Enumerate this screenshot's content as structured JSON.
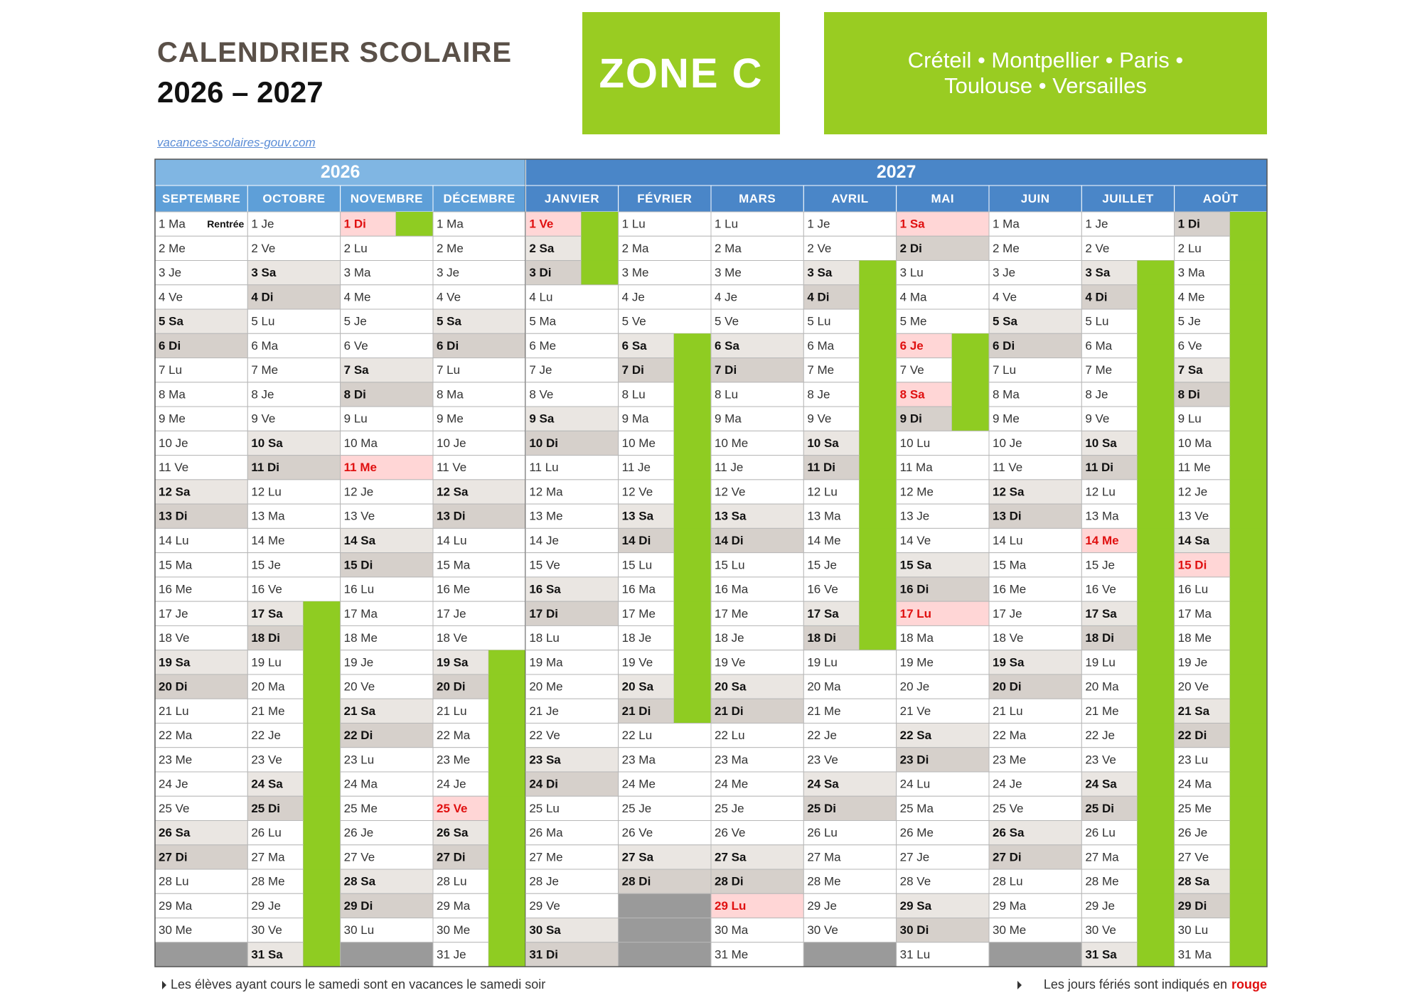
{
  "header": {
    "title": "CALENDRIER SCOLAIRE",
    "years": "2026 – 2027",
    "zone": "ZONE C",
    "cities": "Créteil • Montpellier • Paris • Toulouse • Versailles",
    "link": "vacances-scolaires-gouv.com"
  },
  "calendar": {
    "years": [
      {
        "label": "2026",
        "months": [
          {
            "name": "SEPTEMBRE",
            "days": [
              "1 Ma",
              "2 Me",
              "3 Je",
              "4 Ve",
              "5 Sa",
              "6 Di",
              "7 Lu",
              "8 Ma",
              "9 Me",
              "10 Je",
              "11 Ve",
              "12 Sa",
              "13 Di",
              "14 Lu",
              "15 Ma",
              "16 Me",
              "17 Je",
              "18 Ve",
              "19 Sa",
              "20 Di",
              "21 Lu",
              "22 Ma",
              "23 Me",
              "24 Je",
              "25 Ve",
              "26 Sa",
              "27 Di",
              "28 Lu",
              "29 Ma",
              "30 Me"
            ],
            "holidays": [],
            "vacation": [],
            "notes": [
              {
                "day": 1,
                "text": "Rentrée"
              }
            ]
          },
          {
            "name": "OCTOBRE",
            "days": [
              "1 Je",
              "2 Ve",
              "3 Sa",
              "4 Di",
              "5 Lu",
              "6 Ma",
              "7 Me",
              "8 Je",
              "9 Ve",
              "10 Sa",
              "11 Di",
              "12 Lu",
              "13 Ma",
              "14 Me",
              "15 Je",
              "16 Ve",
              "17 Sa",
              "18 Di",
              "19 Lu",
              "20 Ma",
              "21 Me",
              "22 Je",
              "23 Ve",
              "24 Sa",
              "25 Di",
              "26 Lu",
              "27 Ma",
              "28 Me",
              "29 Je",
              "30 Ve",
              "31 Sa"
            ],
            "holidays": [],
            "vacation": [
              [
                17,
                31
              ]
            ]
          },
          {
            "name": "NOVEMBRE",
            "days": [
              "1 Di",
              "2 Lu",
              "3 Ma",
              "4 Me",
              "5 Je",
              "6 Ve",
              "7 Sa",
              "8 Di",
              "9 Lu",
              "10 Ma",
              "11 Me",
              "12 Je",
              "13 Ve",
              "14 Sa",
              "15 Di",
              "16 Lu",
              "17 Ma",
              "18 Me",
              "19 Je",
              "20 Ve",
              "21 Sa",
              "22 Di",
              "23 Lu",
              "24 Ma",
              "25 Me",
              "26 Je",
              "27 Ve",
              "28 Sa",
              "29 Di",
              "30 Lu"
            ],
            "holidays": [
              1,
              11
            ],
            "vacation": [
              [
                1,
                1
              ]
            ]
          },
          {
            "name": "DÉCEMBRE",
            "days": [
              "1 Ma",
              "2 Me",
              "3 Je",
              "4 Ve",
              "5 Sa",
              "6 Di",
              "7 Lu",
              "8 Ma",
              "9 Me",
              "10 Je",
              "11 Ve",
              "12 Sa",
              "13 Di",
              "14 Lu",
              "15 Ma",
              "16 Me",
              "17 Je",
              "18 Ve",
              "19 Sa",
              "20 Di",
              "21 Lu",
              "22 Ma",
              "23 Me",
              "24 Je",
              "25 Ve",
              "26 Sa",
              "27 Di",
              "28 Lu",
              "29 Ma",
              "30 Me",
              "31 Je"
            ],
            "holidays": [
              25
            ],
            "vacation": [
              [
                19,
                31
              ]
            ]
          }
        ]
      },
      {
        "label": "2027",
        "months": [
          {
            "name": "JANVIER",
            "days": [
              "1 Ve",
              "2 Sa",
              "3 Di",
              "4 Lu",
              "5 Ma",
              "6 Me",
              "7 Je",
              "8 Ve",
              "9 Sa",
              "10 Di",
              "11 Lu",
              "12 Ma",
              "13 Me",
              "14 Je",
              "15 Ve",
              "16 Sa",
              "17 Di",
              "18 Lu",
              "19 Ma",
              "20 Me",
              "21 Je",
              "22 Ve",
              "23 Sa",
              "24 Di",
              "25 Lu",
              "26 Ma",
              "27 Me",
              "28 Je",
              "29 Ve",
              "30 Sa",
              "31 Di"
            ],
            "holidays": [
              1
            ],
            "vacation": [
              [
                1,
                3
              ]
            ]
          },
          {
            "name": "FÉVRIER",
            "days": [
              "1 Lu",
              "2 Ma",
              "3 Me",
              "4 Je",
              "5 Ve",
              "6 Sa",
              "7 Di",
              "8 Lu",
              "9 Ma",
              "10 Me",
              "11 Je",
              "12 Ve",
              "13 Sa",
              "14 Di",
              "15 Lu",
              "16 Ma",
              "17 Me",
              "18 Je",
              "19 Ve",
              "20 Sa",
              "21 Di",
              "22 Lu",
              "23 Ma",
              "24 Me",
              "25 Je",
              "26 Ve",
              "27 Sa",
              "28 Di"
            ],
            "holidays": [],
            "vacation": [
              [
                6,
                21
              ]
            ]
          },
          {
            "name": "MARS",
            "days": [
              "1 Lu",
              "2 Ma",
              "3 Me",
              "4 Je",
              "5 Ve",
              "6 Sa",
              "7 Di",
              "8 Lu",
              "9 Ma",
              "10 Me",
              "11 Je",
              "12 Ve",
              "13 Sa",
              "14 Di",
              "15 Lu",
              "16 Ma",
              "17 Me",
              "18 Je",
              "19 Ve",
              "20 Sa",
              "21 Di",
              "22 Lu",
              "23 Ma",
              "24 Me",
              "25 Je",
              "26 Ve",
              "27 Sa",
              "28 Di",
              "29 Lu",
              "30 Ma",
              "31 Me"
            ],
            "holidays": [
              29
            ],
            "vacation": []
          },
          {
            "name": "AVRIL",
            "days": [
              "1 Je",
              "2 Ve",
              "3 Sa",
              "4 Di",
              "5 Lu",
              "6 Ma",
              "7 Me",
              "8 Je",
              "9 Ve",
              "10 Sa",
              "11 Di",
              "12 Lu",
              "13 Ma",
              "14 Me",
              "15 Je",
              "16 Ve",
              "17 Sa",
              "18 Di",
              "19 Lu",
              "20 Ma",
              "21 Me",
              "22 Je",
              "23 Ve",
              "24 Sa",
              "25 Di",
              "26 Lu",
              "27 Ma",
              "28 Me",
              "29 Je",
              "30 Ve"
            ],
            "holidays": [],
            "vacation": [
              [
                3,
                18
              ]
            ]
          },
          {
            "name": "MAI",
            "days": [
              "1 Sa",
              "2 Di",
              "3 Lu",
              "4 Ma",
              "5 Me",
              "6 Je",
              "7 Ve",
              "8 Sa",
              "9 Di",
              "10 Lu",
              "11 Ma",
              "12 Me",
              "13 Je",
              "14 Ve",
              "15 Sa",
              "16 Di",
              "17 Lu",
              "18 Ma",
              "19 Me",
              "20 Je",
              "21 Ve",
              "22 Sa",
              "23 Di",
              "24 Lu",
              "25 Ma",
              "26 Me",
              "27 Je",
              "28 Ve",
              "29 Sa",
              "30 Di",
              "31 Lu"
            ],
            "holidays": [
              1,
              6,
              8,
              17
            ],
            "vacation": [
              [
                6,
                9
              ]
            ]
          },
          {
            "name": "JUIN",
            "days": [
              "1 Ma",
              "2 Me",
              "3 Je",
              "4 Ve",
              "5 Sa",
              "6 Di",
              "7 Lu",
              "8 Ma",
              "9 Me",
              "10 Je",
              "11 Ve",
              "12 Sa",
              "13 Di",
              "14 Lu",
              "15 Ma",
              "16 Me",
              "17 Je",
              "18 Ve",
              "19 Sa",
              "20 Di",
              "21 Lu",
              "22 Ma",
              "23 Me",
              "24 Je",
              "25 Ve",
              "26 Sa",
              "27 Di",
              "28 Lu",
              "29 Ma",
              "30 Me"
            ],
            "holidays": [],
            "vacation": []
          },
          {
            "name": "JUILLET",
            "days": [
              "1 Je",
              "2 Ve",
              "3 Sa",
              "4 Di",
              "5 Lu",
              "6 Ma",
              "7 Me",
              "8 Je",
              "9 Ve",
              "10 Sa",
              "11 Di",
              "12 Lu",
              "13 Ma",
              "14 Me",
              "15 Je",
              "16 Ve",
              "17 Sa",
              "18 Di",
              "19 Lu",
              "20 Ma",
              "21 Me",
              "22 Je",
              "23 Ve",
              "24 Sa",
              "25 Di",
              "26 Lu",
              "27 Ma",
              "28 Me",
              "29 Je",
              "30 Ve",
              "31 Sa"
            ],
            "holidays": [
              14
            ],
            "vacation": [
              [
                3,
                31
              ]
            ]
          },
          {
            "name": "AOÛT",
            "days": [
              "1 Di",
              "2 Lu",
              "3 Ma",
              "4 Me",
              "5 Je",
              "6 Ve",
              "7 Sa",
              "8 Di",
              "9 Lu",
              "10 Ma",
              "11 Me",
              "12 Je",
              "13 Ve",
              "14 Sa",
              "15 Di",
              "16 Lu",
              "17 Ma",
              "18 Me",
              "19 Je",
              "20 Ve",
              "21 Sa",
              "22 Di",
              "23 Lu",
              "24 Ma",
              "25 Me",
              "26 Je",
              "27 Ve",
              "28 Sa",
              "29 Di",
              "30 Lu",
              "31 Ma"
            ],
            "holidays": [
              15
            ],
            "vacation": [
              [
                1,
                31
              ]
            ]
          }
        ]
      }
    ]
  },
  "footer": {
    "left": "Les élèves ayant cours le samedi sont en vacances le samedi soir",
    "right": "Les jours fériés sont indiqués en",
    "right_em": "rouge"
  }
}
